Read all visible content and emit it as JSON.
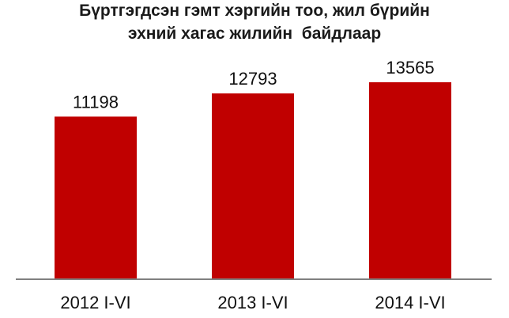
{
  "chart_data": {
    "type": "bar",
    "title_lines": [
      "Бүртгэгдсэн гэмт хэргийн тоо, жил бүрийн",
      "эхний хагас жилийн  байдлаар"
    ],
    "categories": [
      "2012 I-VI",
      "2013 I-VI",
      "2014 I-VI"
    ],
    "values": [
      11198,
      12793,
      13565
    ],
    "data_labels": [
      "11198",
      "12793",
      "13565"
    ],
    "xlabel": "",
    "ylabel": "",
    "ylim": [
      0,
      16000
    ],
    "grid": false,
    "legend": "none",
    "colors": {
      "bar": "#c00000",
      "axis": "#808080",
      "text": "#111111"
    }
  }
}
